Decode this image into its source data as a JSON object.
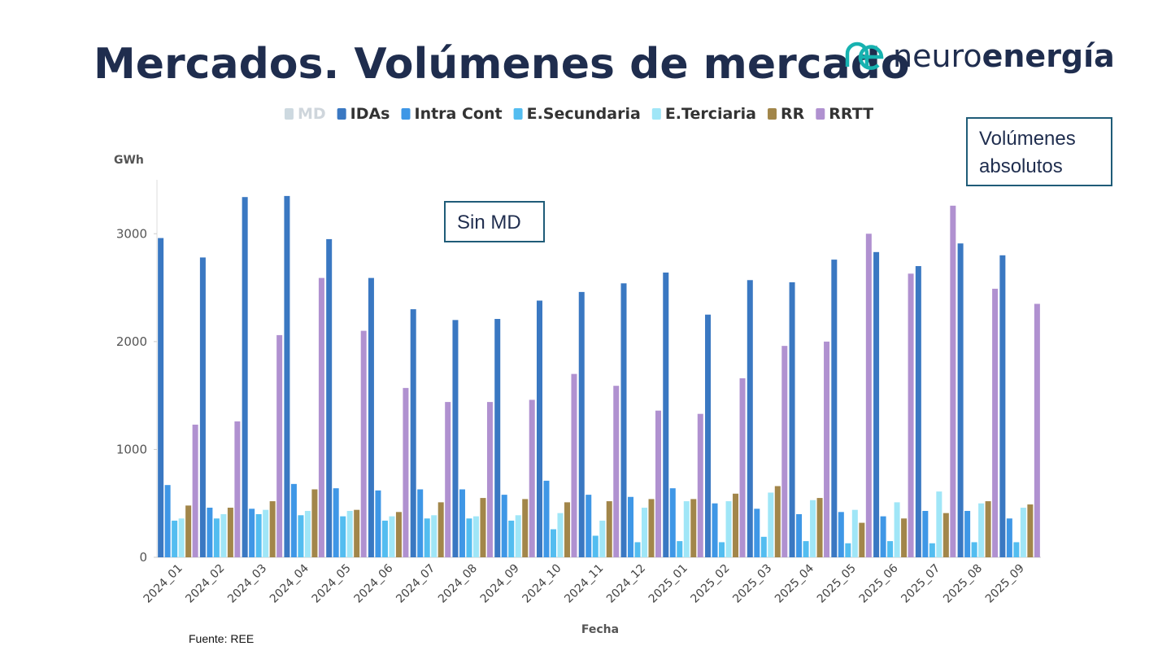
{
  "header": {
    "title": "Mercados. Volúmenes de mercado"
  },
  "logo": {
    "light": "neuro",
    "bold": "energía"
  },
  "annotations": {
    "left": "Sin MD",
    "right": "Volúmenes absolutos"
  },
  "source": "Fuente: REE",
  "chart_data": {
    "type": "bar",
    "y_label": "GWh",
    "x_label": "Fecha",
    "categories": [
      "2024_01",
      "2024_02",
      "2024_03",
      "2024_04",
      "2024_05",
      "2024_06",
      "2024_07",
      "2024_08",
      "2024_09",
      "2024_10",
      "2024_11",
      "2024_12",
      "2025_01",
      "2025_02",
      "2025_03",
      "2025_04",
      "2025_05",
      "2025_06",
      "2025_07",
      "2025_08",
      "2025_09"
    ],
    "series": [
      {
        "name": "MD",
        "color": "#cdd9e0",
        "visible": false,
        "values": [
          null,
          null,
          null,
          null,
          null,
          null,
          null,
          null,
          null,
          null,
          null,
          null,
          null,
          null,
          null,
          null,
          null,
          null,
          null,
          null,
          null
        ]
      },
      {
        "name": "IDAs",
        "color": "#3a78c2",
        "values": [
          2960,
          2780,
          3340,
          3350,
          2950,
          2590,
          2300,
          2200,
          2210,
          2380,
          2460,
          2540,
          2640,
          2250,
          2570,
          2550,
          2760,
          2830,
          2700,
          2910,
          2800
        ]
      },
      {
        "name": "Intra Cont",
        "color": "#3f97e6",
        "values": [
          670,
          460,
          450,
          680,
          640,
          620,
          630,
          630,
          580,
          710,
          580,
          560,
          640,
          500,
          450,
          400,
          420,
          380,
          430,
          430,
          360
        ]
      },
      {
        "name": "E.Secundaria",
        "color": "#53bdf0",
        "values": [
          340,
          360,
          400,
          390,
          380,
          340,
          360,
          360,
          340,
          260,
          200,
          140,
          150,
          140,
          190,
          150,
          130,
          150,
          130,
          140,
          140
        ]
      },
      {
        "name": "E.Terciaria",
        "color": "#a0e6f7",
        "values": [
          360,
          400,
          440,
          430,
          430,
          380,
          390,
          380,
          390,
          410,
          340,
          460,
          520,
          520,
          600,
          530,
          440,
          510,
          610,
          500,
          460
        ]
      },
      {
        "name": "RR",
        "color": "#a2864a",
        "values": [
          480,
          460,
          520,
          630,
          440,
          420,
          510,
          550,
          540,
          510,
          520,
          540,
          540,
          590,
          660,
          550,
          320,
          360,
          410,
          520,
          490
        ]
      },
      {
        "name": "RRTT",
        "color": "#b091d0",
        "values": [
          1230,
          1260,
          2060,
          2590,
          2100,
          1570,
          1440,
          1440,
          1460,
          1700,
          1590,
          1360,
          1330,
          1660,
          1960,
          2000,
          3000,
          2630,
          3260,
          2490,
          2350
        ]
      }
    ],
    "ylim": [
      0,
      3500
    ],
    "yticks": [
      0,
      1000,
      2000,
      3000
    ],
    "grid": false
  }
}
